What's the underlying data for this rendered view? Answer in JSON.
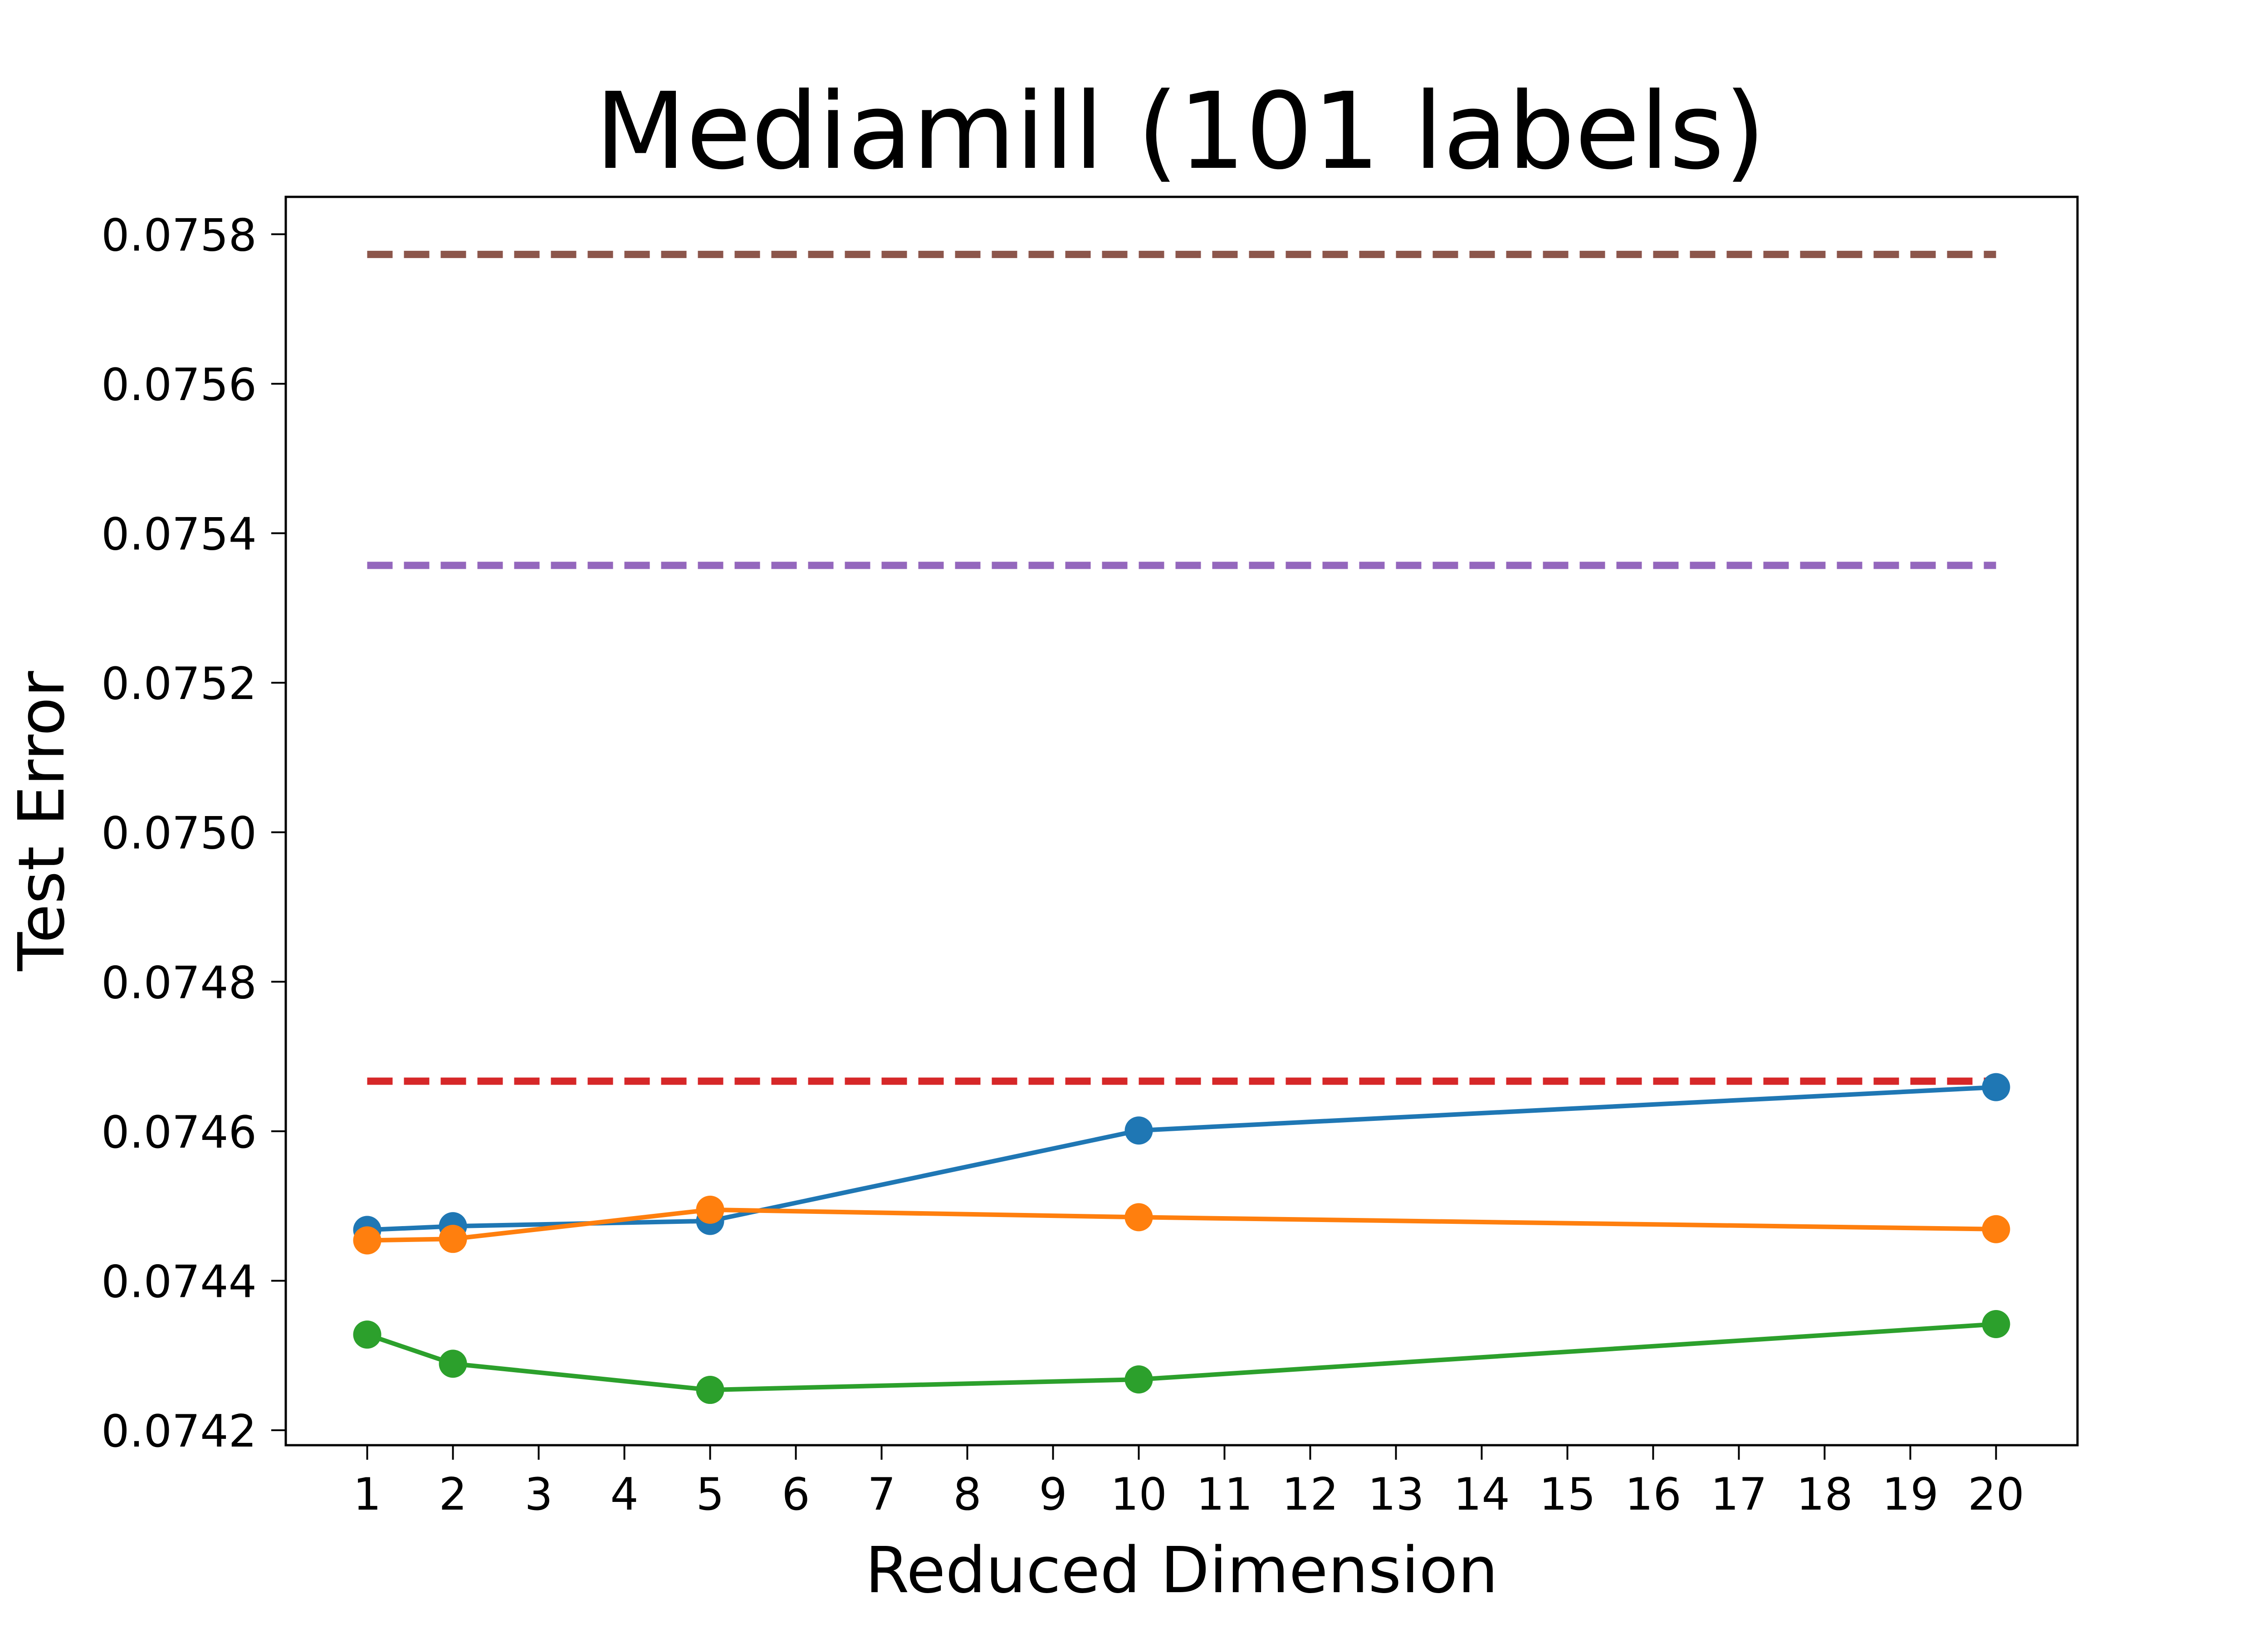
{
  "chart_data": {
    "type": "line",
    "title": "Mediamill (101 labels)",
    "xlabel": "Reduced Dimension",
    "ylabel": "Test Error",
    "xlim": [
      0.05,
      20.95
    ],
    "ylim": [
      0.07418,
      0.07585
    ],
    "x_ticks": [
      1,
      2,
      3,
      4,
      5,
      6,
      7,
      8,
      9,
      10,
      11,
      12,
      13,
      14,
      15,
      16,
      17,
      18,
      19,
      20
    ],
    "x_tick_labels": [
      "1",
      "2",
      "3",
      "4",
      "5",
      "6",
      "7",
      "8",
      "9",
      "10",
      "11",
      "12",
      "13",
      "14",
      "15",
      "16",
      "17",
      "18",
      "19",
      "20"
    ],
    "y_ticks": [
      0.0742,
      0.0744,
      0.0746,
      0.0748,
      0.075,
      0.0752,
      0.0754,
      0.0756,
      0.0758
    ],
    "y_tick_labels": [
      "0.0742",
      "0.0744",
      "0.0746",
      "0.0748",
      "0.0750",
      "0.0752",
      "0.0754",
      "0.0756",
      "0.0758"
    ],
    "grid": false,
    "legend": "none",
    "series": [
      {
        "style": "line-markers",
        "color": "#1f77b4",
        "x": [
          1,
          2,
          5,
          10,
          20
        ],
        "y": [
          0.074468,
          0.074473,
          0.07448,
          0.074601,
          0.074659
        ]
      },
      {
        "style": "line-markers",
        "color": "#ff7f0e",
        "x": [
          1,
          2,
          5,
          10,
          20
        ],
        "y": [
          0.074454,
          0.074456,
          0.074495,
          0.074485,
          0.074469
        ]
      },
      {
        "style": "line-markers",
        "color": "#2ca02c",
        "x": [
          1,
          2,
          5,
          10,
          20
        ],
        "y": [
          0.074328,
          0.074289,
          0.074254,
          0.074268,
          0.074342
        ]
      },
      {
        "style": "dashed",
        "color": "#d62728",
        "x": [
          1,
          20
        ],
        "y": [
          0.074667,
          0.074667
        ]
      },
      {
        "style": "dashed",
        "color": "#9467bd",
        "x": [
          1,
          20
        ],
        "y": [
          0.075357,
          0.075357
        ]
      },
      {
        "style": "dashed",
        "color": "#8c564b",
        "x": [
          1,
          20
        ],
        "y": [
          0.075773,
          0.075773
        ]
      }
    ]
  }
}
